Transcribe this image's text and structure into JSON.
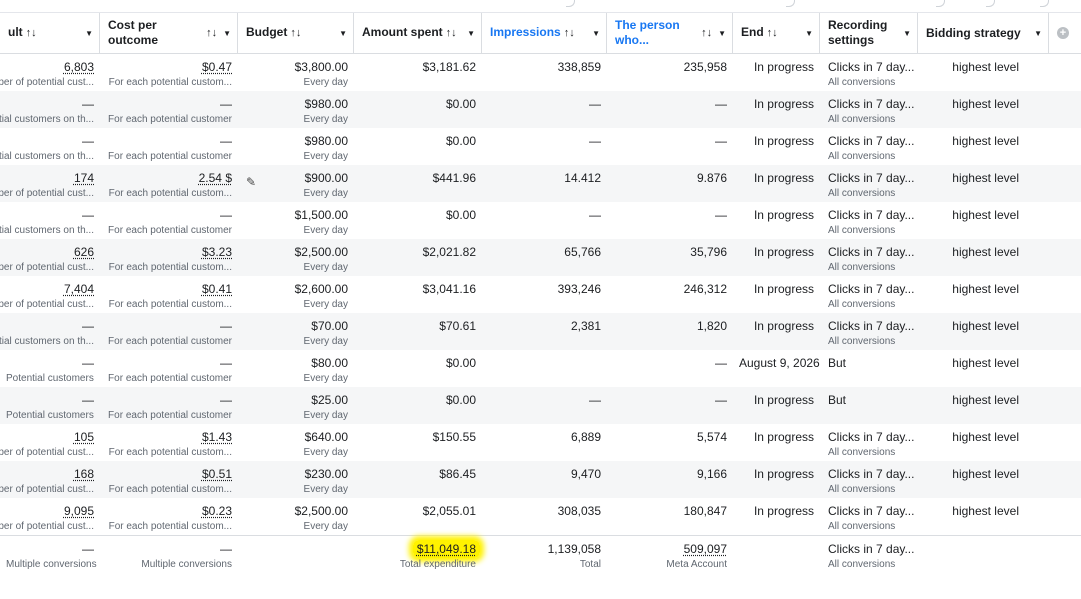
{
  "columns": [
    {
      "label": "ult",
      "sort": "↑↓",
      "blue": false
    },
    {
      "label": "Cost per outcome",
      "sort": "↑↓",
      "blue": false
    },
    {
      "label": "Budget",
      "sort": "↑↓",
      "blue": false
    },
    {
      "label": "Amount spent",
      "sort": "↑↓",
      "blue": false
    },
    {
      "label": "Impressions",
      "sort": "↑↓",
      "blue": true
    },
    {
      "label": "The person who...",
      "sort": "↑↓",
      "blue": true
    },
    {
      "label": "End",
      "sort": "↑↓",
      "blue": false
    },
    {
      "label": "Recording settings",
      "sort": "",
      "blue": false
    },
    {
      "label": "Bidding strategy",
      "sort": "",
      "blue": false
    }
  ],
  "rows": [
    {
      "result": "6,803",
      "result_sub": "per of potential cust...",
      "cost": "$0.47",
      "cost_sub": "For each potential custom...",
      "budget": "$3,800.00",
      "budget_sub": "Every day",
      "spent": "$3,181.62",
      "impressions": "338,859",
      "reach": "235,958",
      "end": "In progress",
      "rec": "Clicks in 7 day...",
      "rec_sub": "All conversions",
      "bid": "highest level"
    },
    {
      "result": "—",
      "result_sub": "ntial customers on th...",
      "cost": "—",
      "cost_sub": "For each potential customer",
      "budget": "$980.00",
      "budget_sub": "Every day",
      "spent": "$0.00",
      "impressions": "—",
      "reach": "—",
      "end": "In progress",
      "rec": "Clicks in 7 day...",
      "rec_sub": "All conversions",
      "bid": "highest level"
    },
    {
      "result": "—",
      "result_sub": "ntial customers on th...",
      "cost": "—",
      "cost_sub": "For each potential customer",
      "budget": "$980.00",
      "budget_sub": "Every day",
      "spent": "$0.00",
      "impressions": "—",
      "reach": "—",
      "end": "In progress",
      "rec": "Clicks in 7 day...",
      "rec_sub": "All conversions",
      "bid": "highest level"
    },
    {
      "result": "174",
      "result_sub": "per of potential cust...",
      "cost": "2.54 $",
      "cost_sub": "For each potential custom...",
      "budget": "$900.00",
      "budget_sub": "Every day",
      "spent": "$441.96",
      "impressions": "14.412",
      "reach": "9.876",
      "end": "In progress",
      "rec": "Clicks in 7 day...",
      "rec_sub": "All conversions",
      "bid": "highest level"
    },
    {
      "result": "—",
      "result_sub": "ntial customers on th...",
      "cost": "—",
      "cost_sub": "For each potential customer",
      "budget": "$1,500.00",
      "budget_sub": "Every day",
      "spent": "$0.00",
      "impressions": "—",
      "reach": "—",
      "end": "In progress",
      "rec": "Clicks in 7 day...",
      "rec_sub": "All conversions",
      "bid": "highest level"
    },
    {
      "result": "626",
      "result_sub": "per of potential cust...",
      "cost": "$3.23",
      "cost_sub": "For each potential custom...",
      "budget": "$2,500.00",
      "budget_sub": "Every day",
      "spent": "$2,021.82",
      "impressions": "65,766",
      "reach": "35,796",
      "end": "In progress",
      "rec": "Clicks in 7 day...",
      "rec_sub": "All conversions",
      "bid": "highest level"
    },
    {
      "result": "7,404",
      "result_sub": "per of potential cust...",
      "cost": "$0.41",
      "cost_sub": "For each potential custom...",
      "budget": "$2,600.00",
      "budget_sub": "Every day",
      "spent": "$3,041.16",
      "impressions": "393,246",
      "reach": "246,312",
      "end": "In progress",
      "rec": "Clicks in 7 day...",
      "rec_sub": "All conversions",
      "bid": "highest level"
    },
    {
      "result": "—",
      "result_sub": "ntial customers on th...",
      "cost": "—",
      "cost_sub": "For each potential customer",
      "budget": "$70.00",
      "budget_sub": "Every day",
      "spent": "$70.61",
      "impressions": "2,381",
      "reach": "1,820",
      "end": "In progress",
      "rec": "Clicks in 7 day...",
      "rec_sub": "All conversions",
      "bid": "highest level"
    },
    {
      "result": "—",
      "result_sub": "Potential customers",
      "cost": "—",
      "cost_sub": "For each potential customer",
      "budget": "$80.00",
      "budget_sub": "Every day",
      "spent": "$0.00",
      "impressions": "",
      "reach": "—",
      "end": "August 9, 2026",
      "rec": "But",
      "rec_sub": "",
      "bid": "highest level"
    },
    {
      "result": "—",
      "result_sub": "Potential customers",
      "cost": "—",
      "cost_sub": "For each potential customer",
      "budget": "$25.00",
      "budget_sub": "Every day",
      "spent": "$0.00",
      "impressions": "—",
      "reach": "—",
      "end": "In progress",
      "rec": "But",
      "rec_sub": "",
      "bid": "highest level"
    },
    {
      "result": "105",
      "result_sub": "per of potential cust...",
      "cost": "$1.43",
      "cost_sub": "For each potential custom...",
      "budget": "$640.00",
      "budget_sub": "Every day",
      "spent": "$150.55",
      "impressions": "6,889",
      "reach": "5,574",
      "end": "In progress",
      "rec": "Clicks in 7 day...",
      "rec_sub": "All conversions",
      "bid": "highest level"
    },
    {
      "result": "168",
      "result_sub": "per of potential cust...",
      "cost": "$0.51",
      "cost_sub": "For each potential custom...",
      "budget": "$230.00",
      "budget_sub": "Every day",
      "spent": "$86.45",
      "impressions": "9,470",
      "reach": "9,166",
      "end": "In progress",
      "rec": "Clicks in 7 day...",
      "rec_sub": "All conversions",
      "bid": "highest level"
    },
    {
      "result": "9,095",
      "result_sub": "per of potential cust...",
      "cost": "$0.23",
      "cost_sub": "For each potential custom...",
      "budget": "$2,500.00",
      "budget_sub": "Every day",
      "spent": "$2,055.01",
      "impressions": "308,035",
      "reach": "180,847",
      "end": "In progress",
      "rec": "Clicks in 7 day...",
      "rec_sub": "All conversions",
      "bid": "highest level"
    }
  ],
  "totals": {
    "result": "—",
    "result_sub": "Multiple conversions",
    "cost": "—",
    "cost_sub": "Multiple conversions",
    "spent": "$11,049.18",
    "spent_sub": "Total expenditure",
    "impressions": "1,139,058",
    "impressions_sub": "Total",
    "reach": "509,097",
    "reach_sub": "Meta Account",
    "rec": "Clicks in 7 day...",
    "rec_sub": "All conversions"
  },
  "colors": {
    "highlight": "#fff200",
    "link_blue": "#1877f2",
    "alt_row": "#f5f6f7"
  },
  "icons": {
    "edit": "pencil-icon",
    "add_column": "plus-circle-icon",
    "dropdown": "caret-down-icon"
  }
}
